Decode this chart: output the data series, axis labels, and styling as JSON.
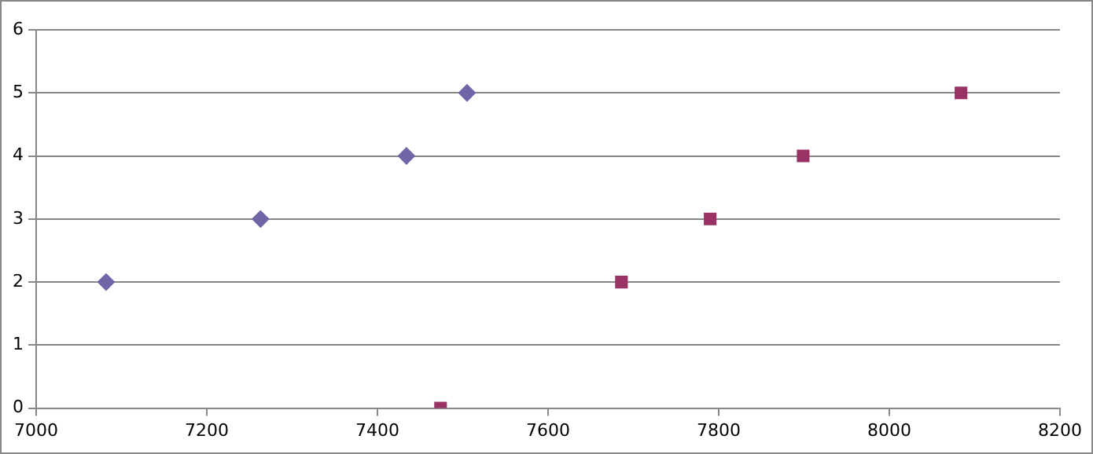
{
  "chart_data": {
    "type": "scatter",
    "xlim": [
      7000,
      8200
    ],
    "xticks": [
      7000,
      7200,
      7400,
      7600,
      7800,
      8000,
      8200
    ],
    "ylim": [
      0,
      6
    ],
    "yticks": [
      0,
      1,
      2,
      3,
      4,
      5,
      6
    ],
    "grid": "y",
    "legend": false,
    "series": [
      {
        "color": "#6f66a8",
        "marker": "diamond",
        "x": [
          7082,
          7263,
          7434,
          7505
        ],
        "values": [
          2,
          3,
          4,
          5
        ]
      },
      {
        "color": "#993366",
        "marker": "square",
        "x": [
          7474,
          7686,
          7790,
          7899,
          8084
        ],
        "values": [
          0,
          2,
          3,
          4,
          5
        ]
      }
    ]
  }
}
